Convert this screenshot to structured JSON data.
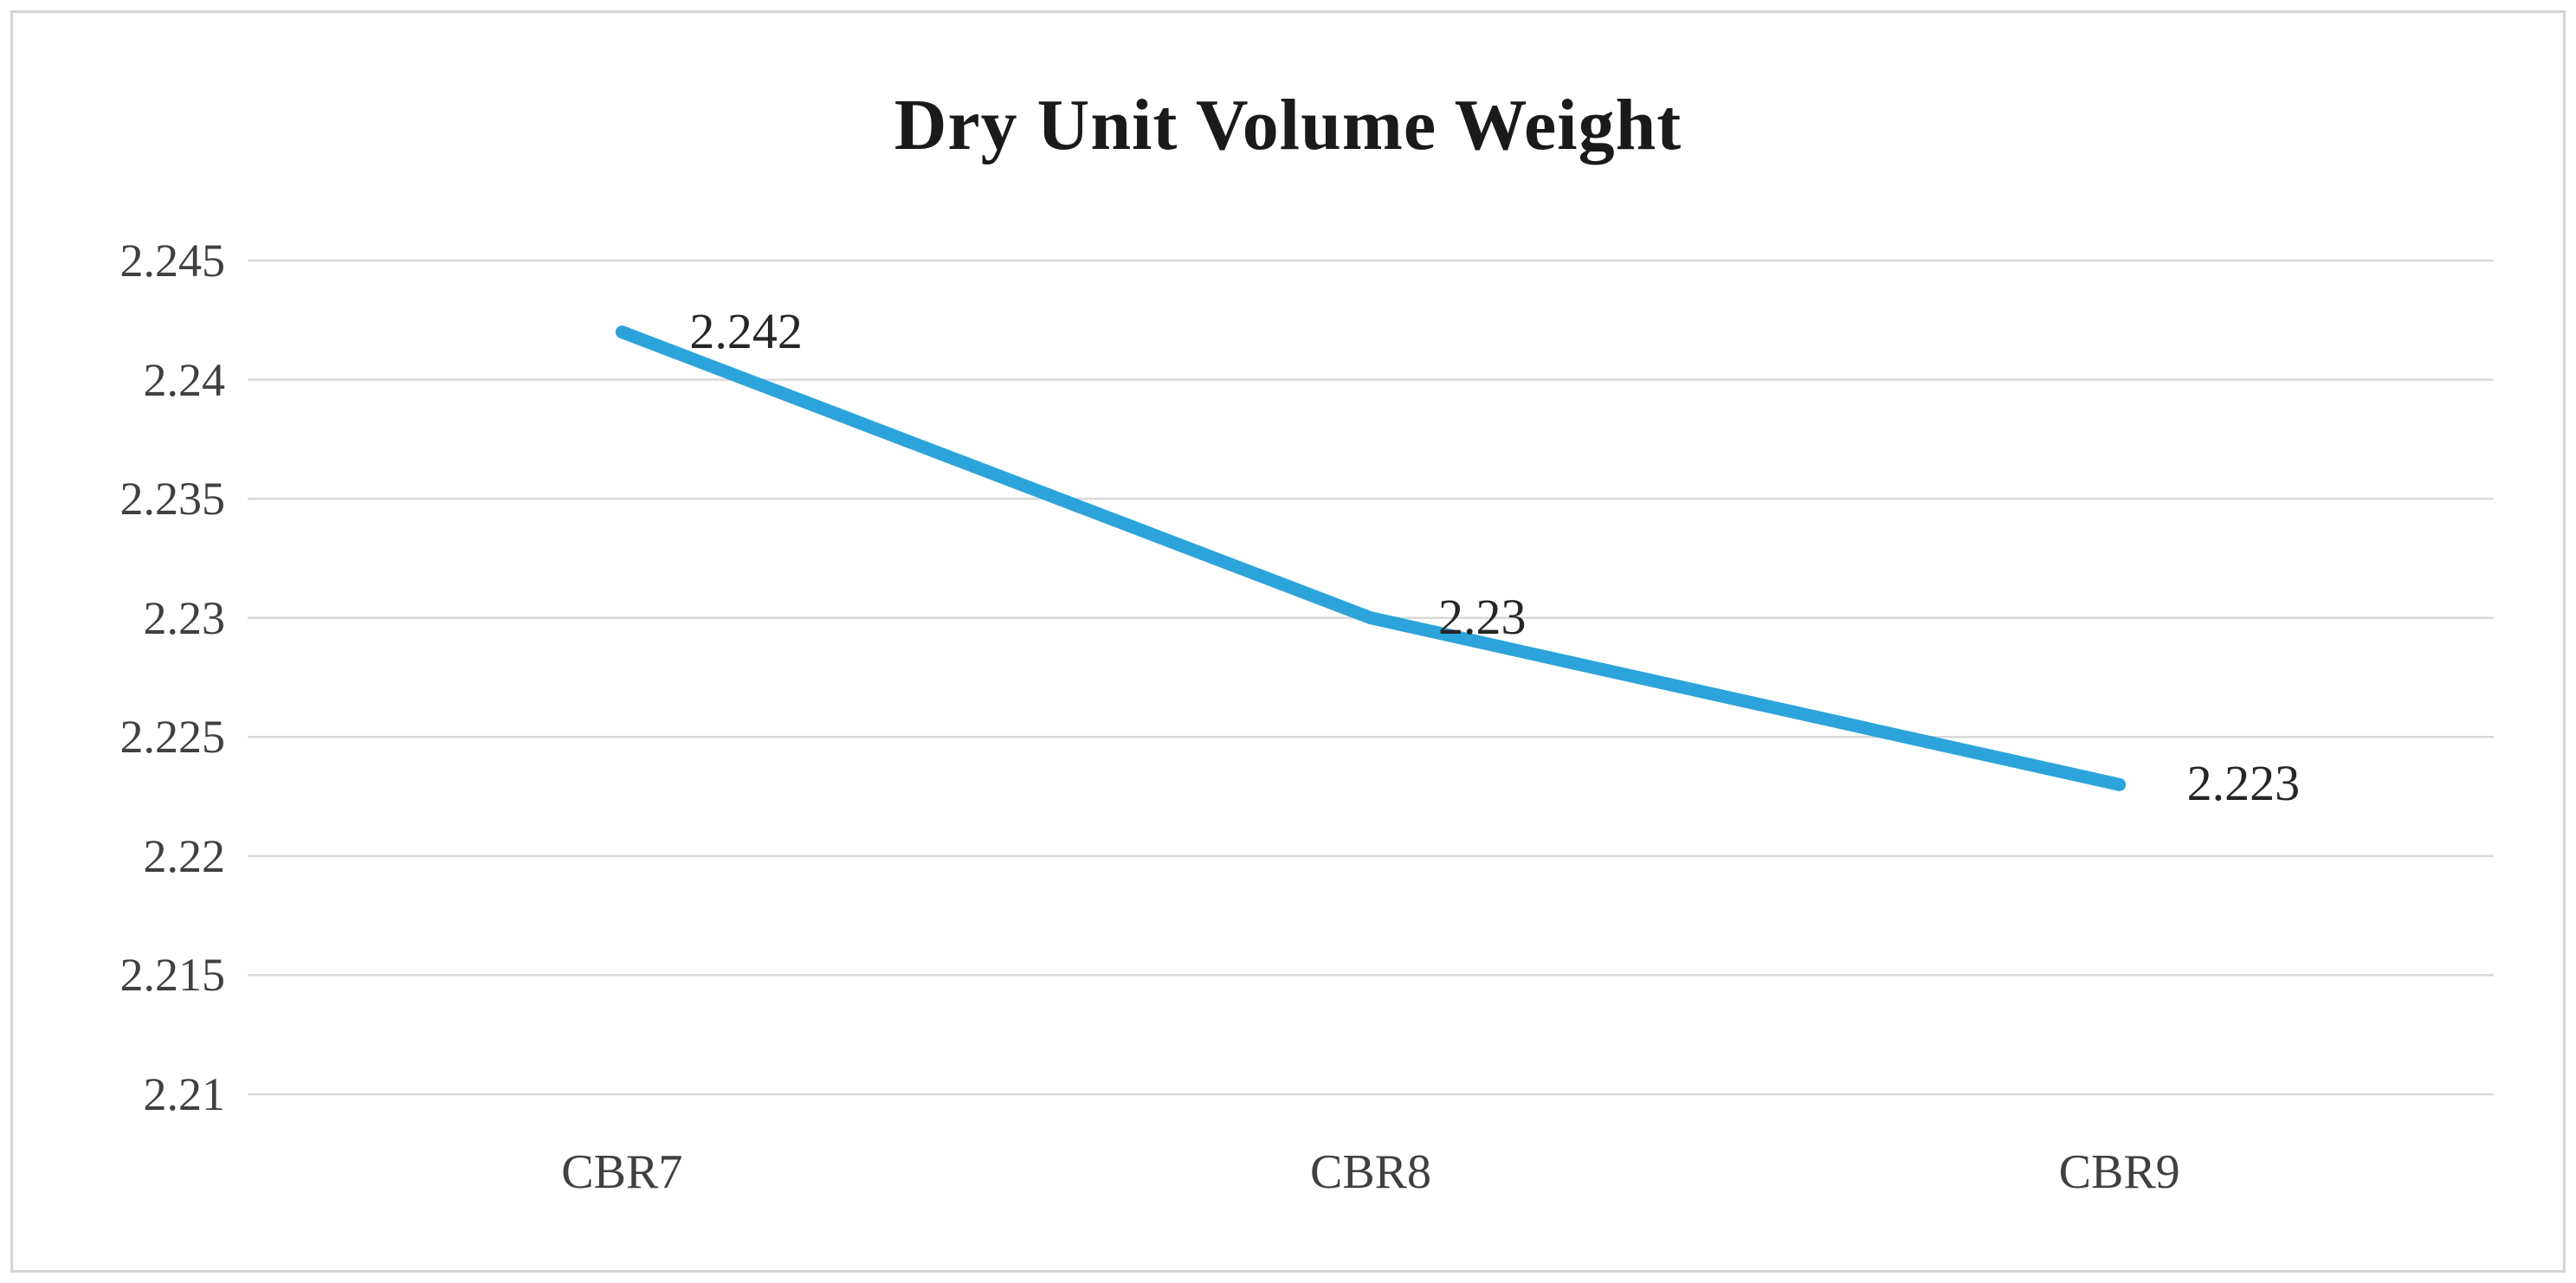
{
  "chart_data": {
    "type": "line",
    "title": "Dry Unit Volume Weight",
    "categories": [
      "CBR7",
      "CBR8",
      "CBR9"
    ],
    "series": [
      {
        "name": "Dry Unit Volume Weight",
        "values": [
          2.242,
          2.23,
          2.223
        ]
      }
    ],
    "data_labels": [
      "2.242",
      "2.23",
      "2.223"
    ],
    "y_ticks": [
      2.245,
      2.24,
      2.235,
      2.23,
      2.225,
      2.22,
      2.215,
      2.21
    ],
    "y_tick_labels": [
      "2.245",
      "2.24",
      "2.235",
      "2.23",
      "2.225",
      "2.22",
      "2.215",
      "2.21"
    ],
    "ylim": [
      2.21,
      2.245
    ],
    "xlabel": "",
    "ylabel": "",
    "grid": true,
    "legend": "none",
    "line_color": "#2CA4DB",
    "gridline_color": "#D9D9D9",
    "tick_text_color": "#404040",
    "title_color": "#1A1A1A",
    "frame_border_color": "#D4D4D4"
  }
}
